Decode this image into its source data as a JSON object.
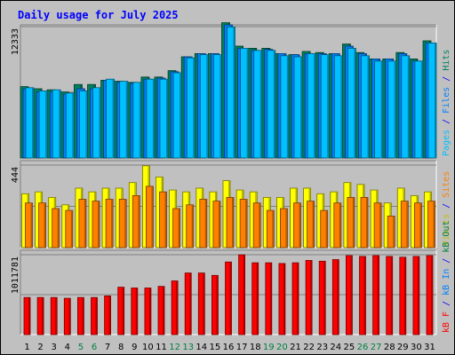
{
  "chart_data": {
    "type": "bar",
    "title": "Daily usage for July 2025",
    "categories": [
      "1",
      "2",
      "3",
      "4",
      "5",
      "6",
      "7",
      "8",
      "9",
      "10",
      "11",
      "12",
      "13",
      "14",
      "15",
      "16",
      "17",
      "18",
      "19",
      "20",
      "21",
      "22",
      "23",
      "24",
      "25",
      "26",
      "27",
      "28",
      "29",
      "30",
      "31"
    ],
    "weekend_days": [
      5,
      6,
      12,
      13,
      19,
      20,
      26,
      27
    ],
    "colors": {
      "title": "#0000ff",
      "weekend_label": "#008040",
      "weekday_label": "#000000",
      "hits": "#00805c",
      "files": "#0080ff",
      "pages": "#00c0ff",
      "visits": "#ffff00",
      "sites": "#ff8000",
      "kbytes": "#ff0000",
      "frame": "#c0c0c0",
      "plot_bg": "#c0c0c0"
    },
    "panels": [
      {
        "axis_max_label": "12333",
        "axis_max": 12333,
        "side_label": [
          {
            "text": "Pages",
            "color": "#00c0ff"
          },
          {
            "text": " / ",
            "color": "#0000ff"
          },
          {
            "text": "Files",
            "color": "#0080ff"
          },
          {
            "text": " / ",
            "color": "#0000ff"
          },
          {
            "text": "Hits",
            "color": "#00805c"
          }
        ],
        "series": [
          {
            "name": "Hits",
            "color": "#00805c",
            "values": [
              6700,
              6500,
              6400,
              6200,
              6900,
              6900,
              7300,
              7200,
              7100,
              7600,
              7600,
              8200,
              9500,
              9800,
              9800,
              12700,
              10500,
              10300,
              10300,
              9800,
              9700,
              10000,
              9900,
              9800,
              10700,
              9900,
              9300,
              9300,
              9900,
              9300,
              11000
            ]
          },
          {
            "name": "Files",
            "color": "#0080ff",
            "values": [
              6500,
              6200,
              6200,
              6000,
              6500,
              6500,
              7300,
              7100,
              7000,
              7400,
              7500,
              8100,
              9500,
              9800,
              9800,
              12500,
              10300,
              10100,
              10200,
              9800,
              9700,
              9800,
              9800,
              9800,
              10500,
              9800,
              9300,
              9300,
              9800,
              9100,
              10800
            ]
          },
          {
            "name": "Pages",
            "color": "#00c0ff",
            "values": [
              6600,
              6300,
              6400,
              6100,
              6300,
              6600,
              7400,
              7200,
              7100,
              7400,
              7400,
              8000,
              9400,
              9700,
              9700,
              12300,
              10300,
              10100,
              10100,
              9600,
              9500,
              9800,
              9700,
              9600,
              10300,
              9600,
              9100,
              9100,
              9600,
              9100,
              10800
            ]
          }
        ]
      },
      {
        "axis_max_label": "444",
        "axis_max": 444,
        "side_label": [
          {
            "text": "Visits",
            "color": "#c0c000"
          },
          {
            "text": " / ",
            "color": "#0000ff"
          },
          {
            "text": "Sites",
            "color": "#ff8000"
          }
        ],
        "series": [
          {
            "name": "Visits",
            "color": "#ffff00",
            "values": [
              290,
              300,
              270,
              230,
              320,
              300,
              320,
              320,
              350,
              440,
              380,
              310,
              300,
              320,
              300,
              360,
              310,
              300,
              270,
              270,
              320,
              320,
              290,
              300,
              350,
              340,
              310,
              240,
              320,
              280,
              300
            ]
          },
          {
            "name": "Sites",
            "color": "#ff8000",
            "values": [
              240,
              240,
              210,
              200,
              260,
              250,
              260,
              260,
              280,
              330,
              300,
              210,
              230,
              260,
              250,
              270,
              260,
              240,
              200,
              210,
              240,
              250,
              200,
              240,
              270,
              270,
              240,
              170,
              250,
              240,
              250
            ]
          }
        ]
      },
      {
        "axis_max_label": "1011781",
        "axis_max": 1011781,
        "side_label": [
          {
            "text": "kB F",
            "color": "#ff0000"
          },
          {
            "text": " / ",
            "color": "#0000ff"
          },
          {
            "text": "kB In",
            "color": "#0080ff"
          },
          {
            "text": " / ",
            "color": "#0000ff"
          },
          {
            "text": "kB Out",
            "color": "#008040"
          }
        ],
        "series": [
          {
            "name": "kB F",
            "color": "#ff0000",
            "values": [
              470000,
              470000,
              470000,
              460000,
              470000,
              470000,
              490000,
              600000,
              590000,
              590000,
              610000,
              680000,
              780000,
              780000,
              750000,
              920000,
              1011000,
              910000,
              910000,
              900000,
              910000,
              940000,
              930000,
              950000,
              1000000,
              990000,
              1000000,
              990000,
              980000,
              990000,
              1000000
            ]
          }
        ]
      }
    ]
  }
}
